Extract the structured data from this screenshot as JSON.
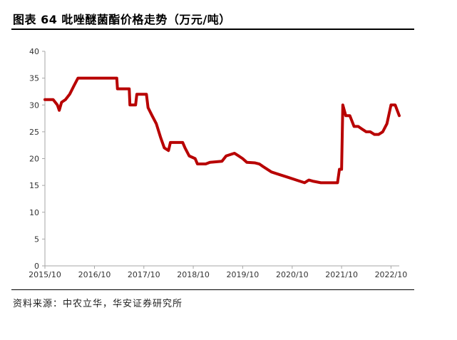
{
  "header": {
    "title": "图表 64 吡唑醚菌酯价格走势（万元/吨）"
  },
  "footer": {
    "source": "资料来源：中农立华，华安证券研究所"
  },
  "colors": {
    "line": "#b80000",
    "axis": "#a6a6a6",
    "text": "#333333"
  },
  "chart_data": {
    "type": "line",
    "title": "",
    "xlabel": "",
    "ylabel": "",
    "ylim": [
      0,
      40
    ],
    "xlim": [
      "2015-10",
      "2022-12"
    ],
    "grid": false,
    "legend": "none",
    "y_ticks": [
      "0",
      "5",
      "10",
      "15",
      "20",
      "25",
      "30",
      "35",
      "40"
    ],
    "x_ticks": [
      {
        "date": "2015-10",
        "label": "2015/10"
      },
      {
        "date": "2016-10",
        "label": "2016/10"
      },
      {
        "date": "2017-10",
        "label": "2017/10"
      },
      {
        "date": "2018-10",
        "label": "2018/10"
      },
      {
        "date": "2019-10",
        "label": "2019/10"
      },
      {
        "date": "2020-10",
        "label": "2020/10"
      },
      {
        "date": "2021-10",
        "label": "2021/10"
      },
      {
        "date": "2022-10",
        "label": "2022/10"
      }
    ],
    "series": [
      {
        "name": "",
        "points": [
          [
            "2015-10-01",
            31
          ],
          [
            "2015-12-01",
            31
          ],
          [
            "2016-01-01",
            30
          ],
          [
            "2016-01-15",
            29
          ],
          [
            "2016-02-01",
            30.5
          ],
          [
            "2016-03-01",
            31
          ],
          [
            "2016-04-01",
            32
          ],
          [
            "2016-05-01",
            33.5
          ],
          [
            "2016-06-01",
            35
          ],
          [
            "2016-08-01",
            35
          ],
          [
            "2016-10-01",
            35
          ],
          [
            "2016-12-01",
            35
          ],
          [
            "2017-02-01",
            35
          ],
          [
            "2017-03-15",
            35
          ],
          [
            "2017-03-20",
            33
          ],
          [
            "2017-05-01",
            33
          ],
          [
            "2017-06-15",
            33
          ],
          [
            "2017-06-20",
            30
          ],
          [
            "2017-08-01",
            30
          ],
          [
            "2017-08-10",
            32
          ],
          [
            "2017-10-01",
            32
          ],
          [
            "2017-10-20",
            32
          ],
          [
            "2017-11-01",
            29.5
          ],
          [
            "2017-12-01",
            28
          ],
          [
            "2018-01-01",
            26.5
          ],
          [
            "2018-02-01",
            24
          ],
          [
            "2018-03-01",
            22
          ],
          [
            "2018-04-01",
            21.5
          ],
          [
            "2018-04-15",
            23
          ],
          [
            "2018-06-01",
            23
          ],
          [
            "2018-07-15",
            23
          ],
          [
            "2018-08-01",
            22
          ],
          [
            "2018-09-01",
            20.5
          ],
          [
            "2018-10-15",
            20
          ],
          [
            "2018-11-01",
            19
          ],
          [
            "2019-01-01",
            19
          ],
          [
            "2019-02-01",
            19.3
          ],
          [
            "2019-05-01",
            19.5
          ],
          [
            "2019-06-01",
            20.5
          ],
          [
            "2019-08-01",
            21
          ],
          [
            "2019-09-01",
            20.5
          ],
          [
            "2019-10-01",
            20
          ],
          [
            "2019-11-01",
            19.3
          ],
          [
            "2020-01-01",
            19.2
          ],
          [
            "2020-02-01",
            19
          ],
          [
            "2020-03-01",
            18.5
          ],
          [
            "2020-05-01",
            17.5
          ],
          [
            "2020-07-01",
            17
          ],
          [
            "2020-09-01",
            16.5
          ],
          [
            "2020-11-01",
            16
          ],
          [
            "2021-01-01",
            15.5
          ],
          [
            "2021-02-01",
            16
          ],
          [
            "2021-03-01",
            15.8
          ],
          [
            "2021-05-01",
            15.5
          ],
          [
            "2021-07-01",
            15.5
          ],
          [
            "2021-08-01",
            15.5
          ],
          [
            "2021-09-01",
            15.5
          ],
          [
            "2021-09-15",
            18
          ],
          [
            "2021-10-01",
            18
          ],
          [
            "2021-10-10",
            30
          ],
          [
            "2021-11-01",
            28
          ],
          [
            "2021-12-01",
            28
          ],
          [
            "2022-01-01",
            26
          ],
          [
            "2022-02-01",
            26
          ],
          [
            "2022-03-01",
            25.5
          ],
          [
            "2022-04-01",
            25
          ],
          [
            "2022-05-01",
            25
          ],
          [
            "2022-06-01",
            24.5
          ],
          [
            "2022-07-01",
            24.5
          ],
          [
            "2022-08-01",
            25
          ],
          [
            "2022-09-01",
            26.5
          ],
          [
            "2022-10-01",
            30
          ],
          [
            "2022-11-01",
            30
          ],
          [
            "2022-12-01",
            28
          ]
        ]
      }
    ]
  }
}
